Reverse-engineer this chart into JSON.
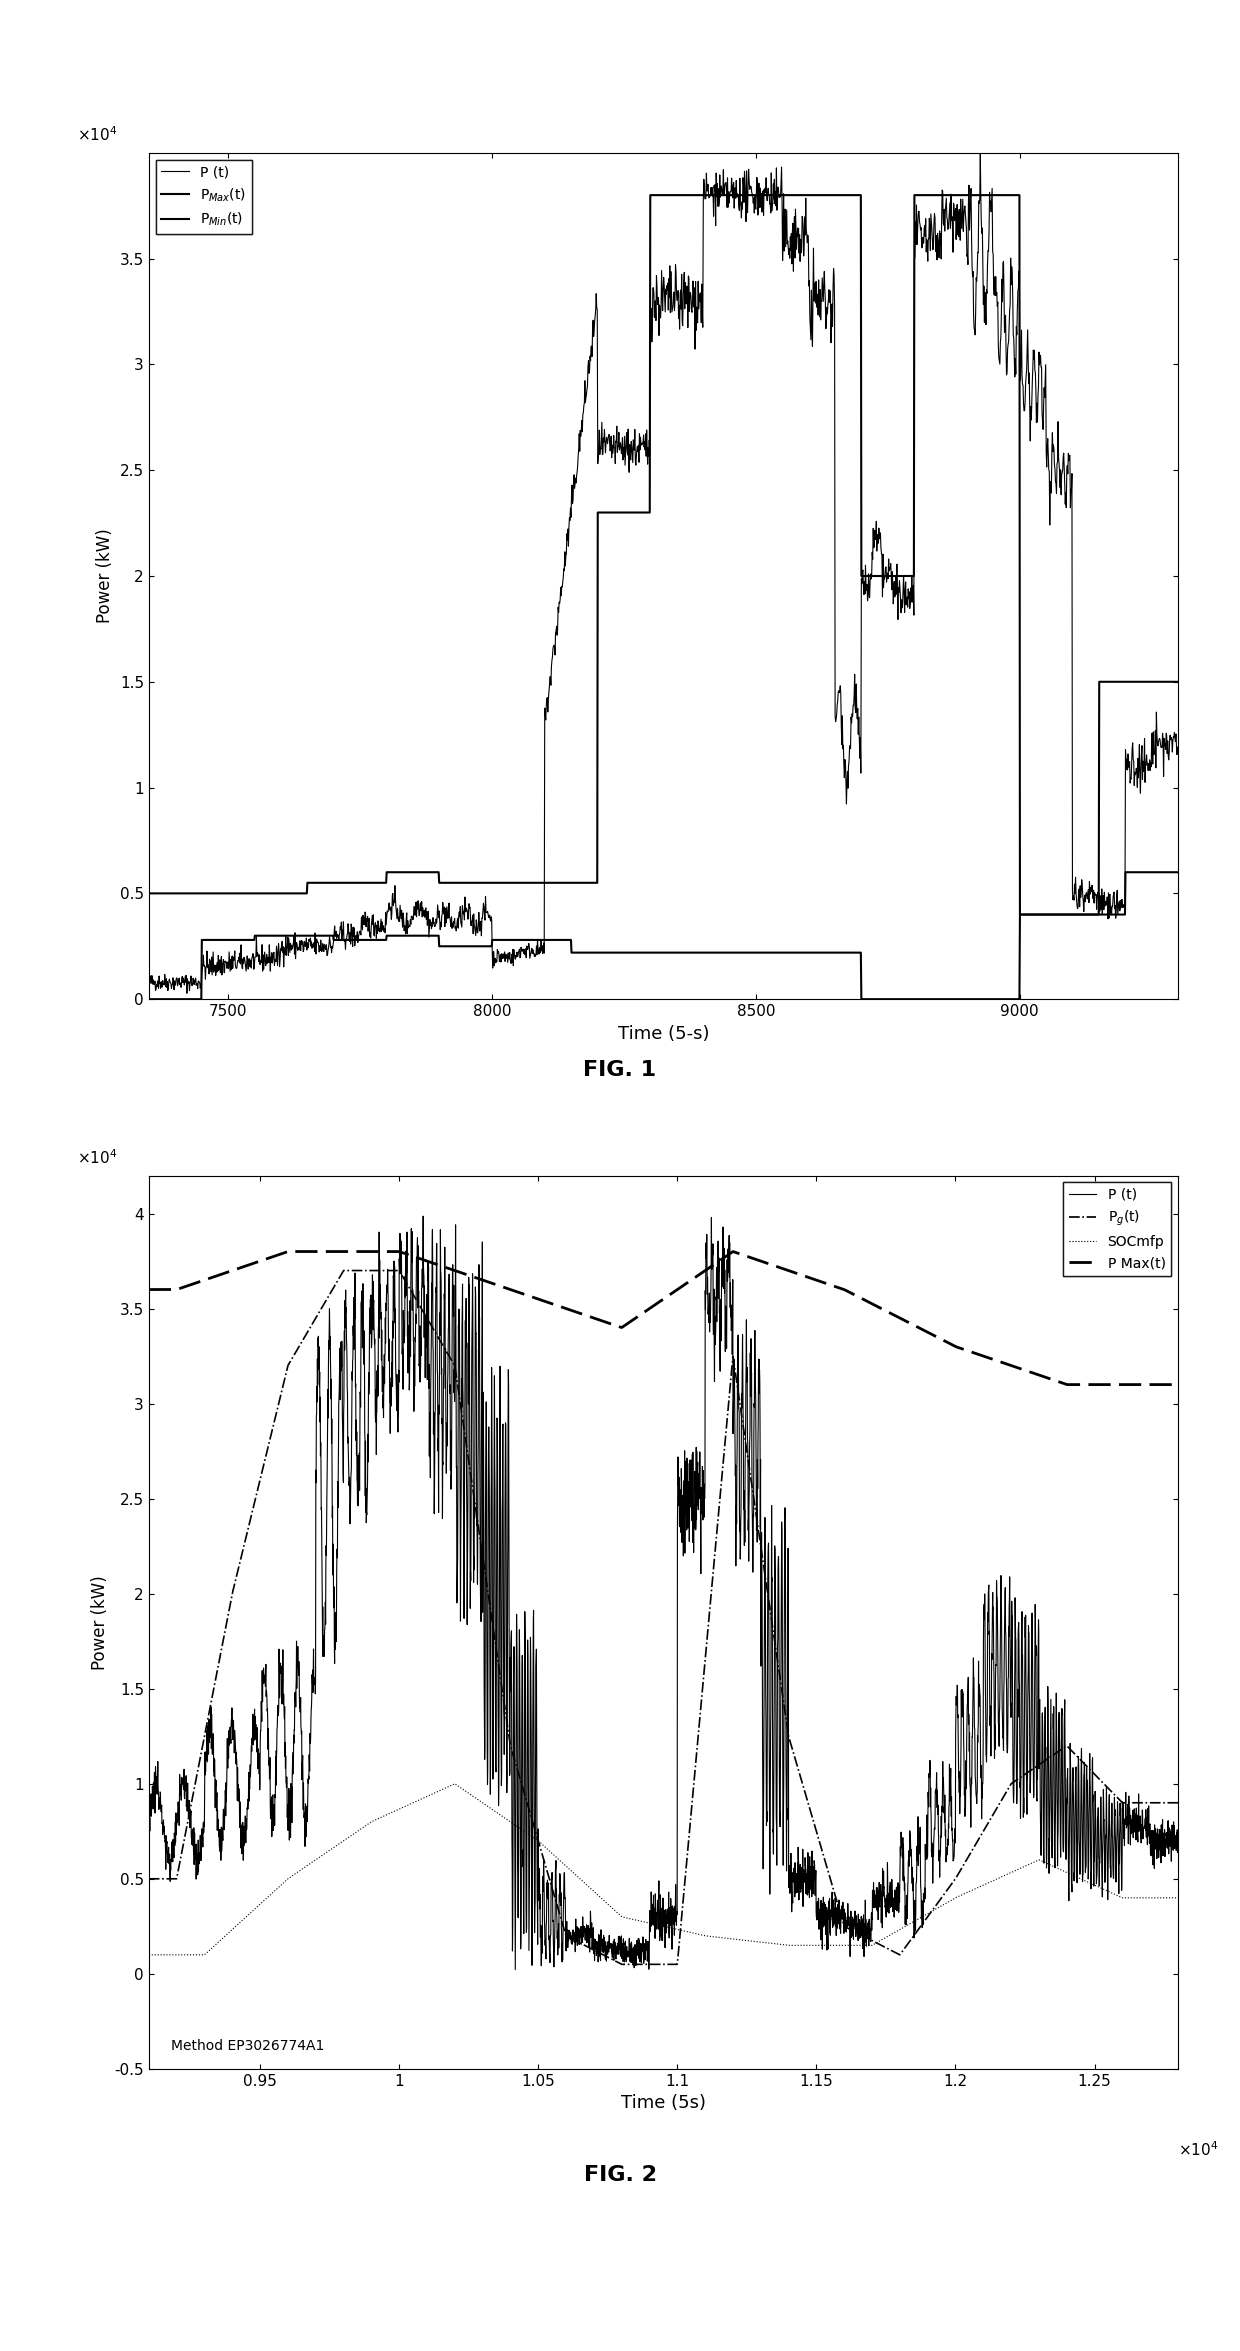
{
  "fig1": {
    "xlabel": "Time (5-s)",
    "ylabel": "Power (kW)",
    "xlim": [
      7350,
      9300
    ],
    "ylim": [
      0,
      40000
    ],
    "xticks": [
      7500,
      8000,
      8500,
      9000
    ],
    "ytick_vals": [
      0,
      5000,
      10000,
      15000,
      20000,
      25000,
      30000,
      35000
    ],
    "ytick_labels": [
      "0",
      "0.5",
      "1",
      "1.5",
      "2",
      "2.5",
      "3",
      "3.5"
    ],
    "legend_entries": [
      "P (t)",
      "P$_{Max}$(t)",
      "P$_{Min}$(t)"
    ]
  },
  "fig2": {
    "xlabel": "Time (5s)",
    "ylabel": "Power (kW)",
    "xlim": [
      9100,
      12800
    ],
    "ylim": [
      -5000,
      42000
    ],
    "xtick_vals": [
      9500,
      10000,
      10500,
      11000,
      11500,
      12000,
      12500
    ],
    "xtick_labels": [
      "0.95",
      "1",
      "1.05",
      "1.1",
      "1.15",
      "1.2",
      "1.25"
    ],
    "ytick_vals": [
      -5000,
      0,
      5000,
      10000,
      15000,
      20000,
      25000,
      30000,
      35000,
      40000
    ],
    "ytick_labels": [
      "-0.5",
      "0",
      "0.5",
      "1",
      "1.5",
      "2",
      "2.5",
      "3",
      "3.5",
      "4"
    ],
    "annotation": "Method EP3026774A1",
    "legend_entries": [
      "P (t)",
      "P$_g$(t)",
      "SOCmfp",
      "P Max(t)"
    ]
  },
  "fig1_label": "FIG. 1",
  "fig2_label": "FIG. 2",
  "background_color": "#ffffff"
}
